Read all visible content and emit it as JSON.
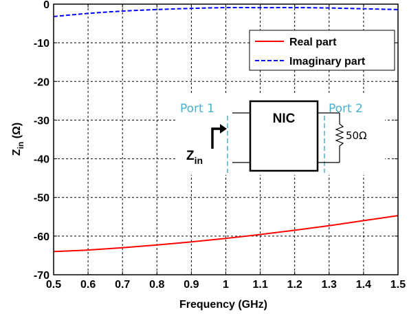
{
  "chart_data": {
    "type": "line",
    "xlabel": "Frequency (GHz)",
    "ylabel_main": "Z",
    "ylabel_sub": "in",
    "ylabel_unit": " (Ω)",
    "xlim": [
      0.5,
      1.5
    ],
    "ylim": [
      -70,
      0
    ],
    "xticks": [
      "0.5",
      "0.6",
      "0.7",
      "0.8",
      "0.9",
      "1",
      "1.1",
      "1.2",
      "1.3",
      "1.4",
      "1.5"
    ],
    "yticks": [
      "0",
      "-10",
      "-20",
      "-30",
      "-40",
      "-50",
      "-60",
      "-70"
    ],
    "grid": true,
    "legend_position": "top-right",
    "series": [
      {
        "name": "Real part",
        "color": "#ff0000",
        "style": "solid",
        "x": [
          0.5,
          0.6,
          0.7,
          0.8,
          0.9,
          1.0,
          1.1,
          1.2,
          1.3,
          1.4,
          1.5
        ],
        "values": [
          -64.0,
          -63.6,
          -63.0,
          -62.3,
          -61.5,
          -60.6,
          -59.6,
          -58.5,
          -57.3,
          -56.0,
          -54.7
        ]
      },
      {
        "name": "Imaginary part",
        "color": "#0000ff",
        "style": "dashed",
        "x": [
          0.5,
          0.6,
          0.7,
          0.8,
          0.9,
          1.0,
          1.1,
          1.2,
          1.3,
          1.4,
          1.5
        ],
        "values": [
          -3.2,
          -2.4,
          -1.8,
          -1.4,
          -1.1,
          -0.9,
          -0.9,
          -0.9,
          -1.0,
          -1.2,
          -1.4
        ]
      }
    ],
    "inset": {
      "port1_label": "Port 1",
      "port2_label": "Port 2",
      "block_label": "NIC",
      "load_label": "50Ω",
      "zin_main": "Z",
      "zin_sub": "in",
      "port_color": "#4aaecf"
    }
  }
}
